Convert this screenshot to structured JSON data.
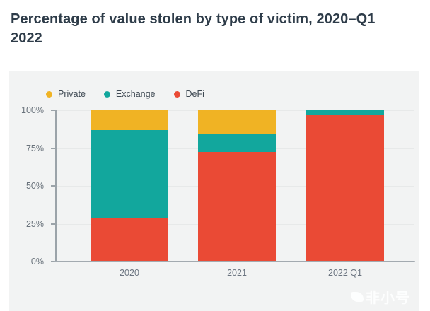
{
  "header": {
    "title": "Percentage of value stolen by type of victim, 2020–Q1 2022"
  },
  "chart_data": {
    "type": "bar",
    "stacked": true,
    "title": "Percentage of value stolen by type of victim, 2020–Q1 2022",
    "categories": [
      "2020",
      "2021",
      "2022 Q1"
    ],
    "series": [
      {
        "name": "DeFi",
        "color": "#ea4a35",
        "values": [
          29,
          72.5,
          96.7
        ]
      },
      {
        "name": "Exchange",
        "color": "#12a79d",
        "values": [
          58,
          12,
          3.3
        ]
      },
      {
        "name": "Private",
        "color": "#f0b324",
        "values": [
          13,
          15.5,
          0
        ]
      }
    ],
    "legend": [
      {
        "label": "Private",
        "color": "#f0b324"
      },
      {
        "label": "Exchange",
        "color": "#12a79d"
      },
      {
        "label": "DeFi",
        "color": "#ea4a35"
      }
    ],
    "legend_position": "top-left",
    "y_ticks": [
      "100%",
      "75%",
      "50%",
      "25%",
      "0%"
    ],
    "ylim": [
      0,
      100
    ],
    "ylabel": "",
    "xlabel": "",
    "grid": "horizontal"
  },
  "watermark": {
    "text": "非小号"
  },
  "colors": {
    "panel_bg": "#f2f3f3",
    "axis": "#9ba3a9",
    "gridline": "#e7e9e9",
    "title_text": "#2e3c49",
    "tick_text": "#69727b"
  }
}
